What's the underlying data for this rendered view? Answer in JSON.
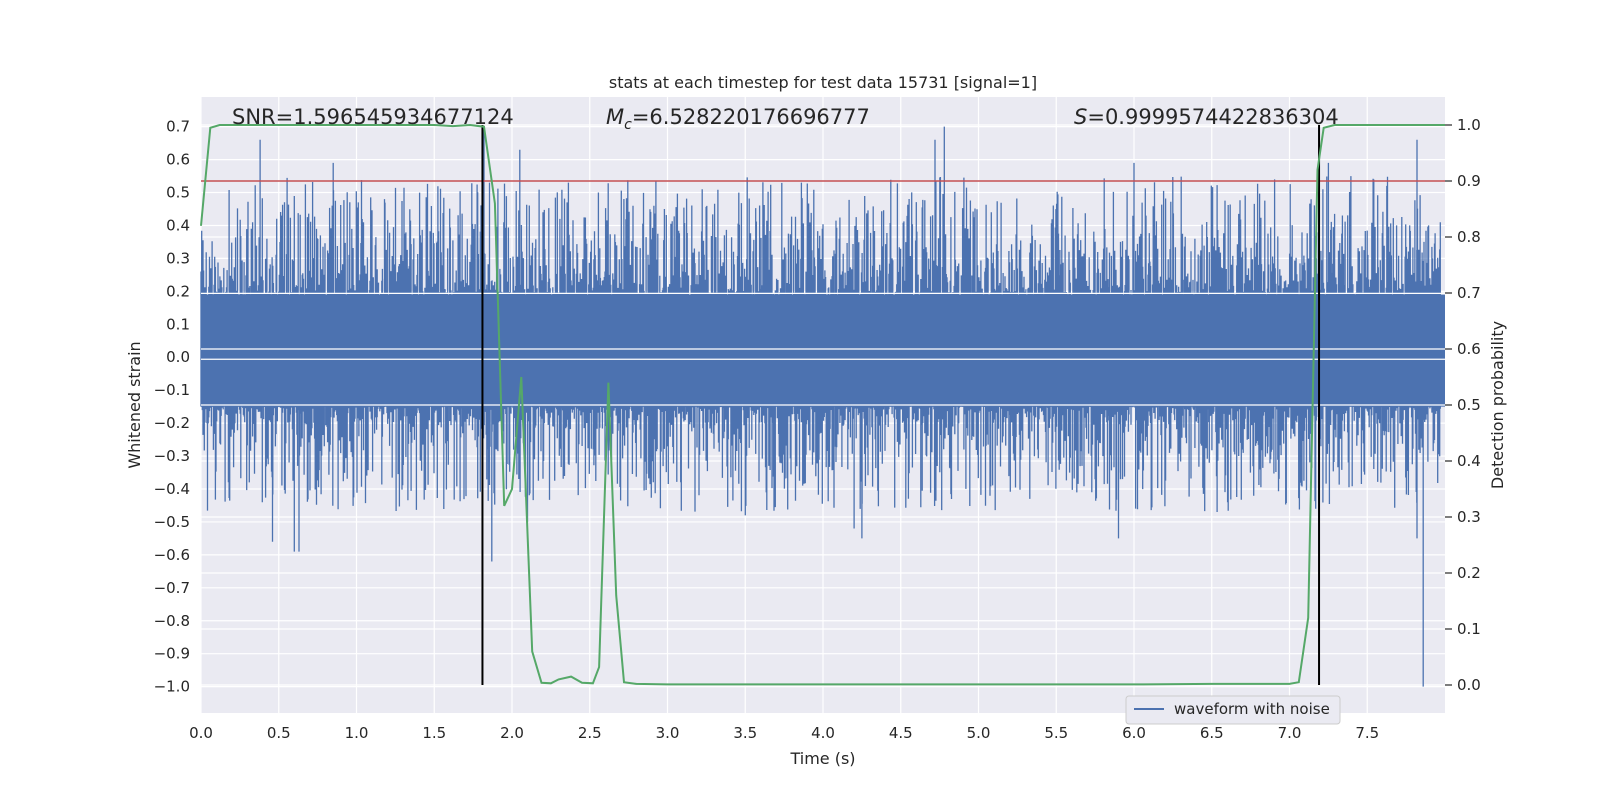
{
  "chart_data": {
    "type": "line",
    "title": "stats at each timestep for test data 15731 [signal=1]",
    "xlabel": "Time (s)",
    "ylabel": "Whitened strain",
    "y2label": "Detection probability",
    "xlim": [
      0.0,
      8.0
    ],
    "ylim": [
      -1.08,
      0.79
    ],
    "y2lim": [
      -0.05,
      1.05
    ],
    "xticks": [
      "0.0",
      "0.5",
      "1.0",
      "1.5",
      "2.0",
      "2.5",
      "3.0",
      "3.5",
      "4.0",
      "4.5",
      "5.0",
      "5.5",
      "6.0",
      "6.5",
      "7.0",
      "7.5"
    ],
    "xtick_values": [
      0.0,
      0.5,
      1.0,
      1.5,
      2.0,
      2.5,
      3.0,
      3.5,
      4.0,
      4.5,
      5.0,
      5.5,
      6.0,
      6.5,
      7.0,
      7.5
    ],
    "yticks": [
      "0.7",
      "0.6",
      "0.5",
      "0.4",
      "0.3",
      "0.2",
      "0.1",
      "0.0",
      "−0.1",
      "−0.2",
      "−0.3",
      "−0.4",
      "−0.5",
      "−0.6",
      "−0.7",
      "−0.8",
      "−0.9",
      "−1.0"
    ],
    "ytick_values": [
      0.7,
      0.6,
      0.5,
      0.4,
      0.3,
      0.2,
      0.1,
      0.0,
      -0.1,
      -0.2,
      -0.3,
      -0.4,
      -0.5,
      -0.6,
      -0.7,
      -0.8,
      -0.9,
      -1.0
    ],
    "y2ticks": [
      "1.0",
      "0.9",
      "0.8",
      "0.7",
      "0.6",
      "0.5",
      "0.4",
      "0.3",
      "0.2",
      "0.1",
      "0.0"
    ],
    "y2tick_values": [
      1.0,
      0.9,
      0.8,
      0.7,
      0.6,
      0.5,
      0.4,
      0.3,
      0.2,
      0.1,
      0.0
    ],
    "grid": true,
    "annotations": {
      "snr": "SNR=1.596545934677124",
      "mc_symbol": "M",
      "mc_sub": "c",
      "mc_value": "=6.528220176696777",
      "s_symbol": "S",
      "s_value": "=0.9999574422836304"
    },
    "threshold_probability": 0.9,
    "event_markers_x": [
      1.81,
      7.19
    ],
    "legend": {
      "label": "waveform with noise",
      "placement": "lower-right"
    },
    "series": [
      {
        "name": "waveform with noise",
        "kind": "noise",
        "axis": "left",
        "color": "#4c72b0",
        "core_range": [
          -0.15,
          0.19
        ],
        "peaks_x": [
          0.38,
          0.85,
          1.18,
          1.82,
          2.05,
          4.72,
          4.78,
          6.0,
          7.25,
          7.82
        ],
        "peaks_y": [
          0.66,
          0.59,
          0.48,
          0.7,
          0.63,
          0.66,
          0.7,
          0.59,
          0.59,
          0.66
        ],
        "troughs_x": [
          0.46,
          0.6,
          0.63,
          1.87,
          2.1,
          3.5,
          4.2,
          4.25,
          5.9,
          7.82,
          7.86
        ],
        "troughs_y": [
          -0.56,
          -0.59,
          -0.59,
          -0.62,
          -0.5,
          -0.48,
          -0.52,
          -0.55,
          -0.55,
          -0.55,
          -1.0
        ]
      },
      {
        "name": "",
        "kind": "probability",
        "axis": "right",
        "color": "#55a868",
        "x": [
          0.0,
          0.06,
          0.12,
          0.5,
          1.0,
          1.5,
          1.62,
          1.73,
          1.82,
          1.89,
          1.95,
          2.0,
          2.06,
          2.13,
          2.19,
          2.25,
          2.3,
          2.38,
          2.45,
          2.52,
          2.56,
          2.62,
          2.67,
          2.72,
          2.8,
          3.0,
          4.0,
          5.0,
          6.0,
          6.5,
          7.0,
          7.06,
          7.12,
          7.18,
          7.22,
          7.29,
          7.35,
          7.5,
          8.0
        ],
        "y": [
          0.82,
          0.995,
          1.0,
          1.0,
          1.0,
          1.0,
          0.998,
          1.0,
          0.997,
          0.86,
          0.32,
          0.35,
          0.55,
          0.06,
          0.004,
          0.003,
          0.01,
          0.015,
          0.004,
          0.003,
          0.032,
          0.54,
          0.16,
          0.005,
          0.002,
          0.001,
          0.001,
          0.001,
          0.001,
          0.002,
          0.002,
          0.005,
          0.12,
          0.92,
          0.995,
          1.0,
          1.0,
          1.0,
          1.0
        ]
      }
    ]
  }
}
